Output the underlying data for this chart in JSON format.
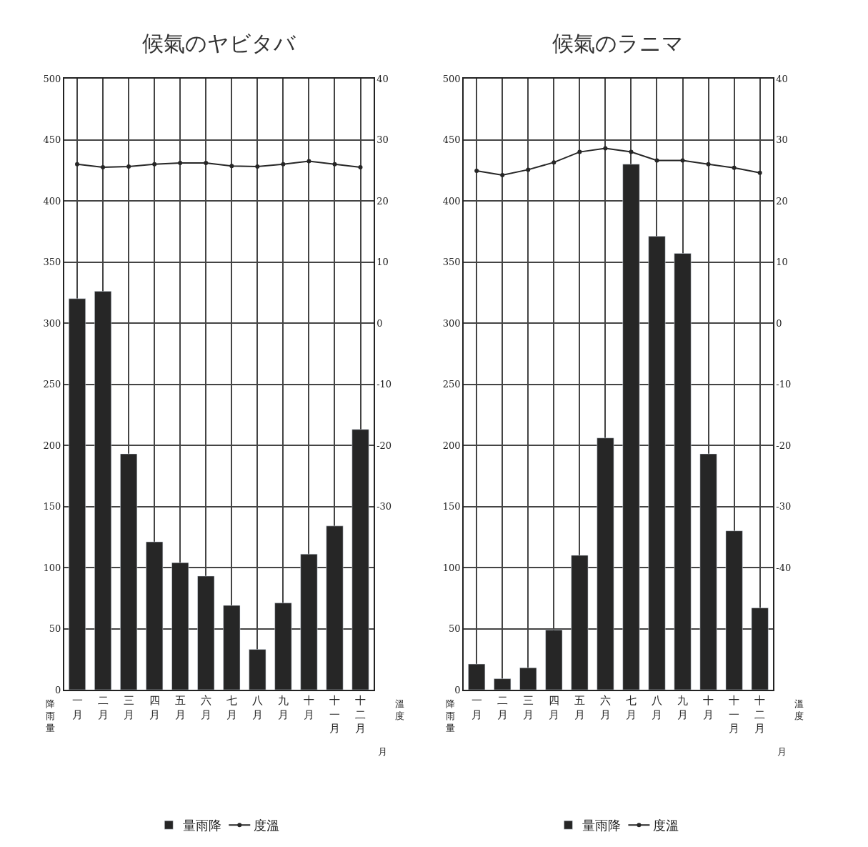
{
  "chart_data": [
    {
      "type": "bar",
      "title": "候氣のヤビタバ",
      "ylabel": "降雨量",
      "y2label": "溫度",
      "xlabel": "月",
      "categories": [
        "一月",
        "二月",
        "三月",
        "四月",
        "五月",
        "六月",
        "七月",
        "八月",
        "九月",
        "十月",
        "十一月",
        "十二月"
      ],
      "series": [
        {
          "name": "量雨降",
          "color": "#262626",
          "values": [
            320,
            326,
            193,
            121,
            104,
            93,
            69,
            33,
            71,
            111,
            134,
            213
          ]
        },
        {
          "name": "度溫",
          "type": "line",
          "axis": "y2",
          "color": "#262626",
          "values": [
            26.0,
            25.5,
            25.6,
            26.0,
            26.2,
            26.2,
            25.7,
            25.6,
            26.0,
            26.5,
            26.0,
            25.5
          ]
        }
      ],
      "ylim": [
        0,
        500
      ],
      "yticks": [
        0,
        50,
        100,
        150,
        200,
        250,
        300,
        350,
        400,
        450,
        500
      ],
      "y2lim": [
        -60,
        40
      ],
      "y2ticks": [
        -30,
        -20,
        -10,
        0,
        10,
        20,
        30,
        40
      ],
      "grid": true,
      "legend": "bottom",
      "marker": "circle",
      "line_style": "solid"
    },
    {
      "type": "bar",
      "title": "候氣のラニマ",
      "ylabel": "降雨量",
      "y2label": "溫度",
      "xlabel": "月",
      "categories": [
        "一月",
        "二月",
        "三月",
        "四月",
        "五月",
        "六月",
        "七月",
        "八月",
        "九月",
        "十月",
        "十一月",
        "十二月"
      ],
      "series": [
        {
          "name": "量雨降",
          "color": "#262626",
          "values": [
            21,
            9,
            18,
            49,
            110,
            206,
            430,
            371,
            357,
            193,
            130,
            67
          ]
        },
        {
          "name": "度溫",
          "type": "line",
          "axis": "y2",
          "color": "#262626",
          "values": [
            24.9,
            24.2,
            25.1,
            26.3,
            28.0,
            28.6,
            28.0,
            26.6,
            26.6,
            26.0,
            25.4,
            24.6
          ]
        }
      ],
      "ylim": [
        0,
        500
      ],
      "yticks": [
        0,
        50,
        100,
        150,
        200,
        250,
        300,
        350,
        400,
        450,
        500
      ],
      "y2lim": [
        -60,
        40
      ],
      "y2ticks": [
        -40,
        -30,
        -20,
        -10,
        0,
        10,
        20,
        30,
        40
      ],
      "grid": true,
      "legend": "bottom",
      "marker": "circle",
      "line_style": "solid"
    }
  ]
}
